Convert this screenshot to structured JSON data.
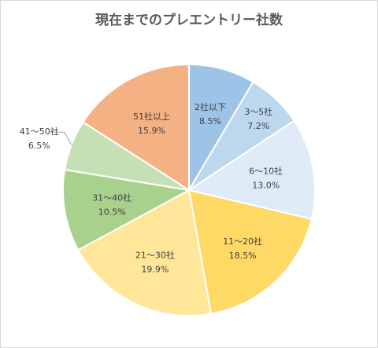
{
  "chart_data": {
    "type": "pie",
    "title": "現在までのプレエントリー社数",
    "categories": [
      "2社以下",
      "3～5社",
      "6～10社",
      "11～20社",
      "21～30社",
      "31～40社",
      "41～50社",
      "51社以上"
    ],
    "values": [
      8.5,
      7.2,
      13.0,
      18.5,
      19.9,
      10.5,
      6.5,
      15.9
    ],
    "value_labels": [
      "8.5%",
      "7.2%",
      "13.0%",
      "18.5%",
      "19.9%",
      "10.5%",
      "6.5%",
      "15.9%"
    ],
    "colors": [
      "#9dc3e6",
      "#bdd7ee",
      "#deebf7",
      "#ffd966",
      "#ffe699",
      "#a9d18e",
      "#c5e0b4",
      "#f4b183"
    ],
    "start": "12 o'clock, clockwise",
    "legend": "none"
  }
}
